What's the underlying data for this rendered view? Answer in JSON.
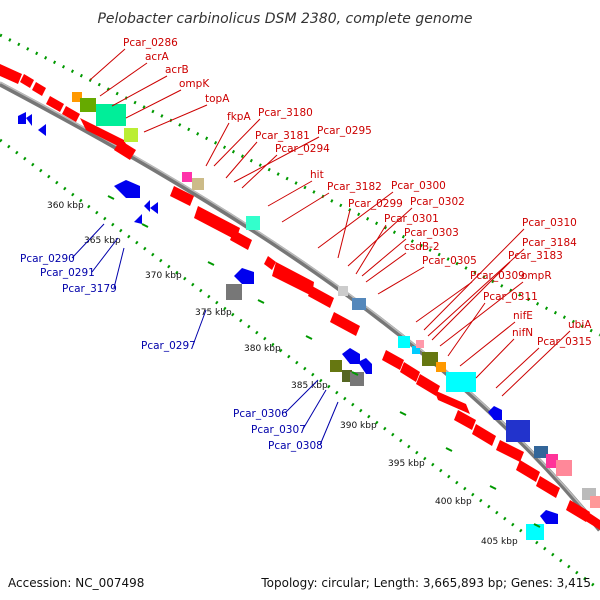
{
  "title": "Pelobacter carbinolicus DSM 2380, complete genome",
  "footer": {
    "accession": "Accession: NC_007498",
    "summary": "Topology: circular; Length: 3,665,893 bp; Genes: 3,415"
  },
  "colors": {
    "forward_gene": "#ff0000",
    "reverse_gene": "#0000ee",
    "forward_label": "#cc0000",
    "reverse_label": "#0000aa",
    "backbone": "#888888",
    "track_dots": "#009900"
  },
  "ticks": [
    "360 kbp",
    "365 kbp",
    "370 kbp",
    "375 kbp",
    "380 kbp",
    "385 kbp",
    "390 kbp",
    "395 kbp",
    "400 kbp",
    "405 kbp"
  ],
  "forward_labels": [
    "Pcar_0286",
    "acrA",
    "acrB",
    "ompK",
    "topA",
    "fkpA",
    "Pcar_3180",
    "Pcar_3181",
    "Pcar_0295",
    "Pcar_0294",
    "hit",
    "Pcar_3182",
    "Pcar_0300",
    "Pcar_0299",
    "Pcar_0302",
    "Pcar_0301",
    "csdB-2",
    "Pcar_0303",
    "Pcar_0305",
    "Pcar_0310",
    "Pcar_3184",
    "Pcar_3183",
    "Pcar_0309",
    "ompR",
    "Pcar_0311",
    "nifE",
    "nifN",
    "ubiA",
    "Pcar_0315"
  ],
  "reverse_labels": [
    "Pcar_0290",
    "Pcar_0291",
    "Pcar_3179",
    "Pcar_0297",
    "Pcar_0306",
    "Pcar_0307",
    "Pcar_0308"
  ]
}
